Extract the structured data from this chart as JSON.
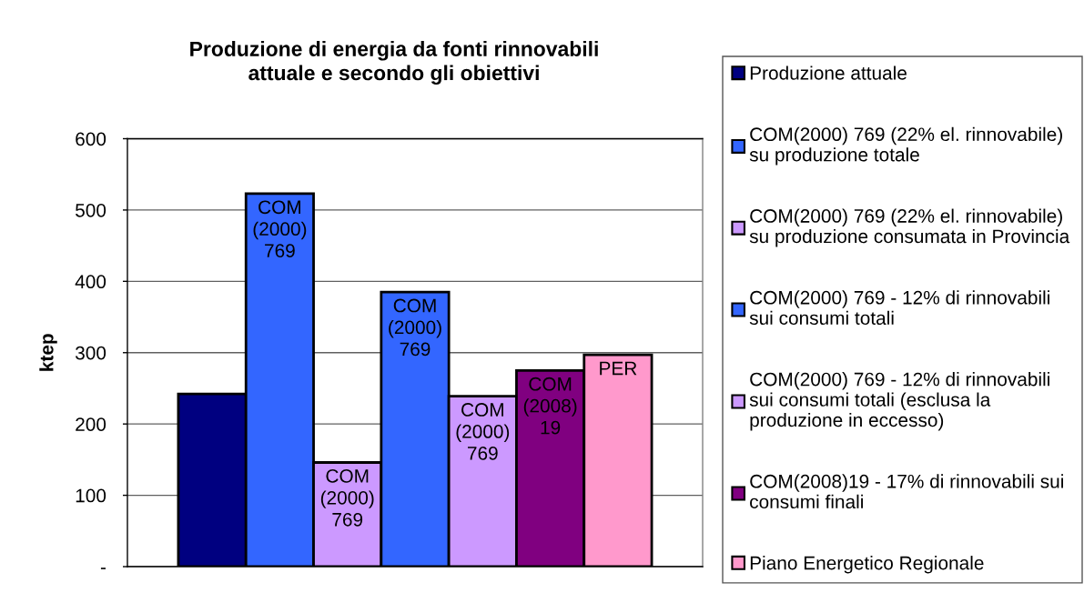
{
  "chart_data": {
    "type": "bar",
    "title": "Produzione di energia da fonti rinnovabili attuale e secondo gli obiettivi",
    "ylabel": "ktep",
    "categories": [
      null
    ],
    "series": [
      {
        "name": "Produzione attuale",
        "color": "#000080",
        "values": [
          242
        ]
      },
      {
        "name": "COM(2000) 769 (22% el. rinnovabile) su produzione totale",
        "color": "#3366ff",
        "values": [
          523
        ],
        "value_labels": [
          "COM (2000) 769"
        ]
      },
      {
        "name": "COM(2000) 769 (22% el. rinnovabile) su produzione consumata in Provincia",
        "color": "#cc99ff",
        "values": [
          146
        ],
        "value_labels": [
          "COM (2000) 769"
        ]
      },
      {
        "name": "COM(2000) 769 - 12% di rinnovabili sui consumi totali",
        "color": "#3366ff",
        "values": [
          385
        ],
        "value_labels": [
          "COM (2000) 769"
        ]
      },
      {
        "name": "COM(2000) 769 - 12% di rinnovabili sui consumi totali (esclusa la produzione in eccesso)",
        "color": "#cc99ff",
        "values": [
          239
        ],
        "value_labels": [
          "COM (2000) 769"
        ]
      },
      {
        "name": "COM(2008)19 - 17% di rinnovabili sui consumi finali",
        "color": "#800080",
        "values": [
          275
        ],
        "value_labels": [
          "COM (2008) 19"
        ]
      },
      {
        "name": "Piano Energetico Regionale",
        "color": "#ff99cc",
        "values": [
          297
        ],
        "value_labels": [
          "PER"
        ]
      }
    ],
    "ylim": [
      0,
      600
    ],
    "yticks": [
      {
        "value": 0,
        "label": "-"
      },
      100,
      200,
      300,
      400,
      500,
      600
    ],
    "tick_labels": "y",
    "grid": "y",
    "legend": "right"
  }
}
